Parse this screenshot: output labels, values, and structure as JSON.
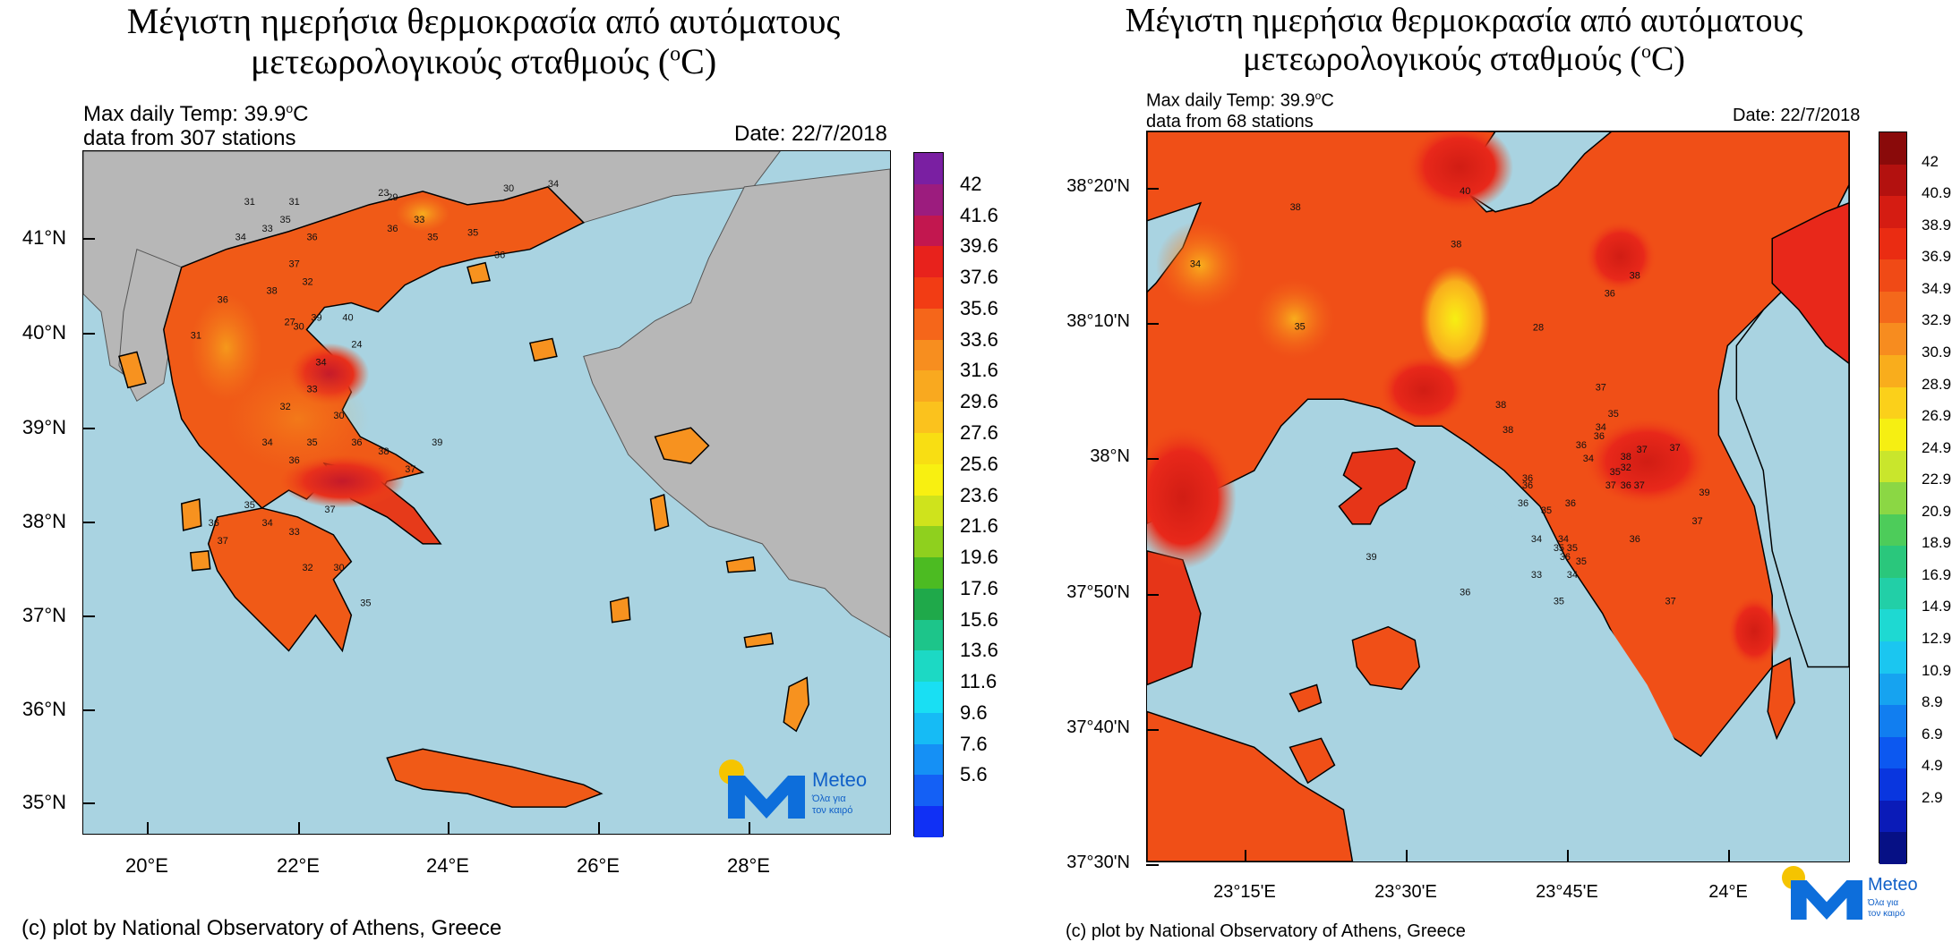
{
  "left": {
    "title_line1": "Μέγιστη ημερήσια θερμοκρασία από αυτόματους",
    "title_line2": "μετεωρολογικούς σταθμούς (",
    "title_deg": "o",
    "title_unit": "C)",
    "info_line1_prefix": "Max daily Temp: 39.9",
    "info_deg": "o",
    "info_unit": "C",
    "info_line2": "data from 307 stations",
    "date": "Date: 22/7/2018",
    "lat_labels": [
      "41°N",
      "40°N",
      "39°N",
      "38°N",
      "37°N",
      "36°N",
      "35°N"
    ],
    "lon_labels": [
      "20°E",
      "22°E",
      "24°E",
      "26°E",
      "28°E"
    ],
    "colorbar_labels": [
      "42",
      "41.6",
      "39.6",
      "37.6",
      "35.6",
      "33.6",
      "31.6",
      "29.6",
      "27.6",
      "25.6",
      "23.6",
      "21.6",
      "19.6",
      "17.6",
      "15.6",
      "13.6",
      "11.6",
      "9.6",
      "7.6",
      "5.6"
    ],
    "colorbar_colors": [
      "#7a1fa2",
      "#9c1c7e",
      "#c2174f",
      "#e8221c",
      "#f23c14",
      "#f5661a",
      "#f78e1f",
      "#f9a91f",
      "#fbc21d",
      "#f8de13",
      "#f8f011",
      "#cfe31c",
      "#8fd01e",
      "#4cbb22",
      "#1fa94a",
      "#1dc58a",
      "#1cd9c4",
      "#19dff3",
      "#16bbf5",
      "#1590f5",
      "#1460f5",
      "#1030f5"
    ],
    "credit": "(c) plot by National Observatory of Athens, Greece",
    "station_values": [
      "31",
      "33",
      "34",
      "35",
      "36",
      "37",
      "38",
      "39",
      "40",
      "32",
      "30",
      "27",
      "24",
      "23",
      "29",
      "33",
      "35",
      "36",
      "31",
      "34",
      "33",
      "32",
      "34",
      "36",
      "35",
      "30",
      "36",
      "38",
      "37",
      "39",
      "36",
      "37",
      "35",
      "34",
      "33",
      "32",
      "30",
      "35",
      "36",
      "31",
      "37",
      "34",
      "35",
      "36",
      "30"
    ]
  },
  "right": {
    "title_line1": "Μέγιστη ημερήσια θερμοκρασία από αυτόματους",
    "title_line2": "μετεωρολογικούς σταθμούς (",
    "title_deg": "o",
    "title_unit": "C)",
    "info_line1_prefix": "Max daily Temp: 39.9",
    "info_deg": "o",
    "info_unit": "C",
    "info_line2": "data from 68 stations",
    "date": "Date: 22/7/2018",
    "lat_labels": [
      "38°20'N",
      "38°10'N",
      "38°N",
      "37°50'N",
      "37°40'N",
      "37°30'N"
    ],
    "lon_labels": [
      "23°15'E",
      "23°30'E",
      "23°45'E",
      "24°E"
    ],
    "colorbar_labels": [
      "42",
      "40.9",
      "38.9",
      "36.9",
      "34.9",
      "32.9",
      "30.9",
      "28.9",
      "26.9",
      "24.9",
      "22.9",
      "20.9",
      "18.9",
      "16.9",
      "14.9",
      "12.9",
      "10.9",
      "8.9",
      "6.9",
      "4.9",
      "2.9"
    ],
    "colorbar_colors": [
      "#8a0a0a",
      "#b3110f",
      "#d51c12",
      "#ea2c12",
      "#f04a16",
      "#f4681b",
      "#f78c1f",
      "#f9ad1c",
      "#fbd01a",
      "#f6ef12",
      "#c9e62c",
      "#8bd744",
      "#4dcc5a",
      "#2ac77c",
      "#22cfa7",
      "#1ed9d2",
      "#1bc6f0",
      "#16a3f0",
      "#117ef0",
      "#0c58f0",
      "#0936df",
      "#0a1bb8",
      "#061085"
    ],
    "credit": "(c) plot by National Observatory of Athens, Greece",
    "station_values": [
      "38",
      "40",
      "38",
      "34",
      "35",
      "28",
      "36",
      "38",
      "37",
      "35",
      "34",
      "36",
      "35",
      "36",
      "34",
      "37",
      "38",
      "37",
      "36",
      "36",
      "35",
      "36",
      "34",
      "36",
      "37",
      "38",
      "38",
      "37",
      "36",
      "35",
      "34",
      "36",
      "35",
      "35",
      "34",
      "33",
      "36",
      "37",
      "35",
      "32",
      "36",
      "39",
      "37",
      "39"
    ]
  },
  "logo": {
    "name": "Meteo",
    "tagline1": "Όλα για",
    "tagline2": "τον καιρό"
  }
}
